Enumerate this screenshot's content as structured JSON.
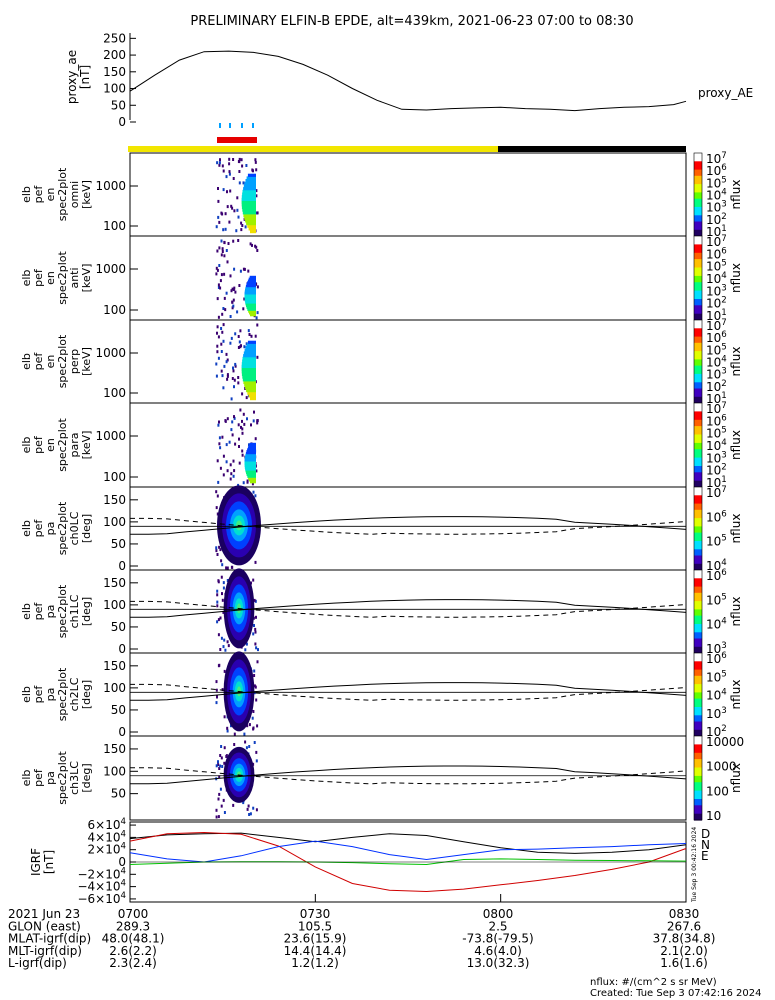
{
  "title": "PRELIMINARY ELFIN-B EPDE, alt=439km, 2021-06-23 07:00 to 08:30",
  "colors": {
    "yellow": "#f2e600",
    "black": "#000000",
    "red": "#e60000",
    "blue_tick": "#00a0ff",
    "bx": "#d00000",
    "by": "#0030ff",
    "bz": "#00c000"
  },
  "chart_data": [
    {
      "type": "line",
      "id": "proxy_ae",
      "ylabel": [
        "proxy_ae",
        "[nT]"
      ],
      "yticks": [
        0,
        50,
        100,
        150,
        200,
        250
      ],
      "ylim": [
        0,
        260
      ],
      "legend": "proxy_AE",
      "x_minutes": [
        0,
        4,
        8,
        12,
        16,
        20,
        24,
        28,
        32,
        36,
        40,
        44,
        48,
        52,
        56,
        60,
        64,
        68,
        72,
        76,
        80,
        84,
        88,
        90
      ],
      "values": [
        92,
        140,
        185,
        210,
        212,
        208,
        196,
        172,
        140,
        100,
        65,
        38,
        36,
        40,
        42,
        44,
        40,
        38,
        34,
        40,
        44,
        46,
        52,
        62
      ]
    },
    {
      "type": "heatmap",
      "id": "omni",
      "ylabel": [
        "elb",
        "pef",
        "en",
        "spec2plot",
        "omni",
        "[keV]"
      ],
      "yticks": [
        "1000",
        "100"
      ],
      "cbar_ticks": [
        "10^7",
        "10^6",
        "10^5",
        "10^4",
        "10^3",
        "10^2",
        "10^1"
      ],
      "cbar_label": "nflux"
    },
    {
      "type": "heatmap",
      "id": "anti",
      "ylabel": [
        "elb",
        "pef",
        "en",
        "spec2plot",
        "anti",
        "[keV]"
      ],
      "yticks": [
        "1000",
        "100"
      ],
      "cbar_ticks": [
        "10^7",
        "10^6",
        "10^5",
        "10^4",
        "10^3",
        "10^2",
        "10^1"
      ],
      "cbar_label": "nflux"
    },
    {
      "type": "heatmap",
      "id": "perp",
      "ylabel": [
        "elb",
        "pef",
        "en",
        "spec2plot",
        "perp",
        "[keV]"
      ],
      "yticks": [
        "1000",
        "100"
      ],
      "cbar_ticks": [
        "10^7",
        "10^6",
        "10^5",
        "10^4",
        "10^3",
        "10^2",
        "10^1"
      ],
      "cbar_label": "nflux"
    },
    {
      "type": "heatmap",
      "id": "para",
      "ylabel": [
        "elb",
        "pef",
        "en",
        "spec2plot",
        "para",
        "[keV]"
      ],
      "yticks": [
        "1000",
        "100"
      ],
      "cbar_ticks": [
        "10^7",
        "10^6",
        "10^5",
        "10^4",
        "10^3",
        "10^2",
        "10^1"
      ],
      "cbar_label": "nflux"
    },
    {
      "type": "heatmap",
      "id": "ch0LC",
      "ylabel": [
        "elb",
        "pef",
        "pa",
        "spec2plot",
        "ch0LC",
        "[deg]"
      ],
      "yticks": [
        "150",
        "100",
        "50",
        "0"
      ],
      "cbar_ticks": [
        "10^7",
        "10^6",
        "10^5",
        "10^4"
      ],
      "cbar_label": "nflux"
    },
    {
      "type": "heatmap",
      "id": "ch1LC",
      "ylabel": [
        "elb",
        "pef",
        "pa",
        "spec2plot",
        "ch1LC",
        "[deg]"
      ],
      "yticks": [
        "150",
        "100",
        "50",
        "0"
      ],
      "cbar_ticks": [
        "10^6",
        "10^5",
        "10^4",
        "10^3"
      ],
      "cbar_label": "nflux"
    },
    {
      "type": "heatmap",
      "id": "ch2LC",
      "ylabel": [
        "elb",
        "pef",
        "pa",
        "spec2plot",
        "ch2LC",
        "[deg]"
      ],
      "yticks": [
        "150",
        "100",
        "50",
        "0"
      ],
      "cbar_ticks": [
        "10^6",
        "10^5",
        "10^4",
        "10^3",
        "10^2"
      ],
      "cbar_label": "nflux"
    },
    {
      "type": "heatmap",
      "id": "ch3LC",
      "ylabel": [
        "elb",
        "pef",
        "pa",
        "spec2plot",
        "ch3LC",
        "[deg]"
      ],
      "yticks": [
        "150",
        "100",
        "50"
      ],
      "cbar_ticks": [
        "10000",
        "1000",
        "100",
        "10"
      ],
      "cbar_label": "nflux"
    },
    {
      "type": "line",
      "id": "igrf",
      "ylabel": [
        "IGRF",
        "[nT]"
      ],
      "yticks": [
        "6×10^4",
        "4×10^4",
        "2×10^4",
        "0",
        "−2×10^4",
        "−4×10^4",
        "−6×10^4"
      ],
      "ylim": [
        -65000,
        65000
      ],
      "legend": [
        "D",
        "N",
        "E"
      ],
      "x_minutes": [
        0,
        6,
        12,
        18,
        24,
        30,
        36,
        42,
        48,
        54,
        60,
        66,
        72,
        78,
        84,
        90
      ],
      "series": [
        {
          "values": [
            38000,
            44000,
            46000,
            47000,
            40000,
            33000,
            40000,
            46000,
            43000,
            33000,
            23000,
            16000,
            14000,
            16000,
            20000,
            28000
          ]
        },
        {
          "values": [
            34000,
            46000,
            48000,
            45000,
            26000,
            -8000,
            -35000,
            -46000,
            -48000,
            -44000,
            -37000,
            -30000,
            -22000,
            -12000,
            0,
            22000
          ]
        },
        {
          "values": [
            15000,
            5000,
            0,
            10000,
            25000,
            34000,
            25000,
            12000,
            4000,
            12000,
            20000,
            21000,
            23000,
            25000,
            28000,
            30000
          ]
        },
        {
          "values": [
            -4000,
            -2000,
            0,
            500,
            500,
            0,
            -1000,
            -3000,
            -4000,
            4000,
            5000,
            4000,
            3000,
            2500,
            2000,
            1500
          ]
        }
      ]
    }
  ],
  "time_labels": [
    "0700",
    "0730",
    "0800",
    "0830"
  ],
  "footer": {
    "rows": [
      {
        "label": "2021 Jun 23",
        "values": [
          "0700",
          "0730",
          "0800",
          "0830"
        ]
      },
      {
        "label": "GLON (east)",
        "values": [
          "289.3",
          "105.5",
          "2.5",
          "267.6"
        ]
      },
      {
        "label": "MLAT-igrf(dip)",
        "values": [
          "48.0(48.1)",
          "23.6(15.9)",
          "-73.8(-79.5)",
          "37.8(34.8)"
        ]
      },
      {
        "label": "MLT-igrf(dip)",
        "values": [
          "2.6(2.2)",
          "14.4(14.4)",
          "4.6(4.0)",
          "2.1(2.0)"
        ]
      },
      {
        "label": "L-igrf(dip)",
        "values": [
          "2.3(2.4)",
          "1.2(1.2)",
          "13.0(32.3)",
          "1.6(1.6)"
        ]
      }
    ],
    "units_note": "nflux: #/(cm^2 s sr MeV)",
    "created": "Created: Tue Sep  3 07:42:16 2024",
    "side_stamp": "Tue Sep  3 00:42:16 2024"
  }
}
